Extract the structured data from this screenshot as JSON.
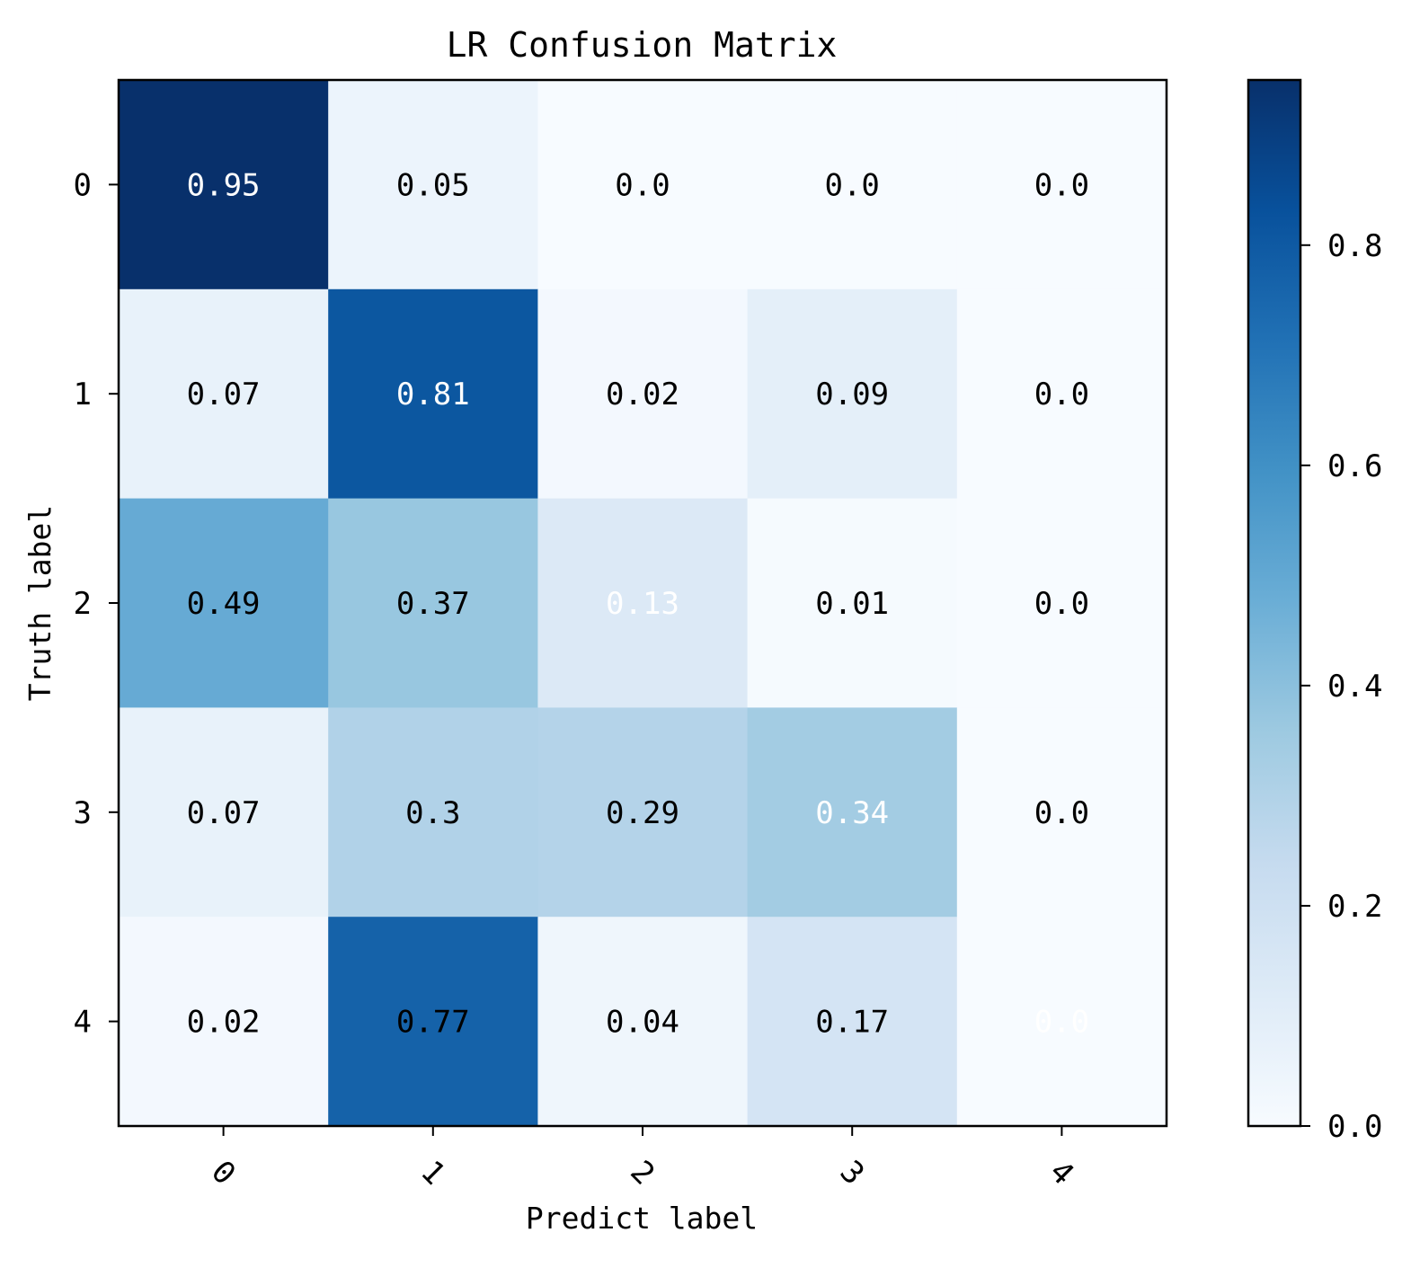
{
  "chart_data": {
    "type": "heatmap",
    "title": "LR Confusion Matrix",
    "xlabel": "Predict label",
    "ylabel": "Truth label",
    "x_categories": [
      "0",
      "1",
      "2",
      "3",
      "4"
    ],
    "y_categories": [
      "0",
      "1",
      "2",
      "3",
      "4"
    ],
    "values": [
      [
        0.95,
        0.05,
        0.0,
        0.0,
        0.0
      ],
      [
        0.07,
        0.81,
        0.02,
        0.09,
        0.0
      ],
      [
        0.49,
        0.37,
        0.13,
        0.01,
        0.0
      ],
      [
        0.07,
        0.3,
        0.29,
        0.34,
        0.0
      ],
      [
        0.02,
        0.77,
        0.04,
        0.17,
        0.0
      ]
    ],
    "cell_labels": [
      [
        "0.95",
        "0.05",
        "0.0",
        "0.0",
        "0.0"
      ],
      [
        "0.07",
        "0.81",
        "0.02",
        "0.09",
        "0.0"
      ],
      [
        "0.49",
        "0.37",
        "0.13",
        "0.01",
        "0.0"
      ],
      [
        "0.07",
        "0.3",
        "0.29",
        "0.34",
        "0.0"
      ],
      [
        "0.02",
        "0.77",
        "0.04",
        "0.17",
        "0.0"
      ]
    ],
    "label_colors": [
      [
        "#ffffff",
        "#000000",
        "#000000",
        "#000000",
        "#000000"
      ],
      [
        "#000000",
        "#ffffff",
        "#000000",
        "#000000",
        "#000000"
      ],
      [
        "#000000",
        "#000000",
        "#ffffff",
        "#000000",
        "#000000"
      ],
      [
        "#000000",
        "#000000",
        "#000000",
        "#ffffff",
        "#000000"
      ],
      [
        "#000000",
        "#000000",
        "#000000",
        "#000000",
        "#ffffff"
      ]
    ],
    "colormap": "Blues",
    "colorbar": {
      "range": [
        0.0,
        0.95
      ],
      "ticks": [
        0.0,
        0.2,
        0.4,
        0.6,
        0.8
      ],
      "tick_labels": [
        "0.0",
        "0.2",
        "0.4",
        "0.6",
        "0.8"
      ]
    },
    "x_tick_rotation_deg": 45,
    "grid": false
  }
}
